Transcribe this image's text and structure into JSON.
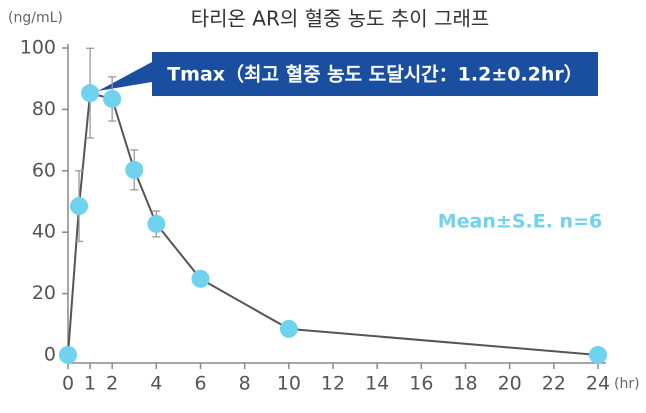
{
  "chart_data": {
    "type": "line",
    "title": "타리온 AR의 혈중 농도 추이 그래프",
    "y_unit": "(ng/mL)",
    "x_unit": "(hr)",
    "annotation": "Tmax（최고 혈중 농도 도달시간：1.2±0.2hr）",
    "legend_note": "Mean±S.E.  n=6",
    "x": [
      0,
      0.5,
      1,
      2,
      3,
      4,
      6,
      10,
      24
    ],
    "series": [
      {
        "color": "#6fd3ee",
        "line_color": "#555555",
        "values": [
          0,
          48.5,
          85.3,
          83.4,
          60.3,
          42.7,
          24.8,
          8.5,
          0
        ],
        "errors": [
          0,
          11.5,
          14.6,
          7.2,
          6.5,
          4.2,
          1,
          1,
          0
        ]
      }
    ],
    "xlim": [
      0,
      24
    ],
    "xticks": [
      0,
      1,
      2,
      4,
      6,
      8,
      10,
      12,
      14,
      16,
      18,
      20,
      22,
      24
    ],
    "ylim": [
      0,
      100
    ],
    "yticks": [
      0,
      20,
      40,
      60,
      80,
      100
    ]
  }
}
